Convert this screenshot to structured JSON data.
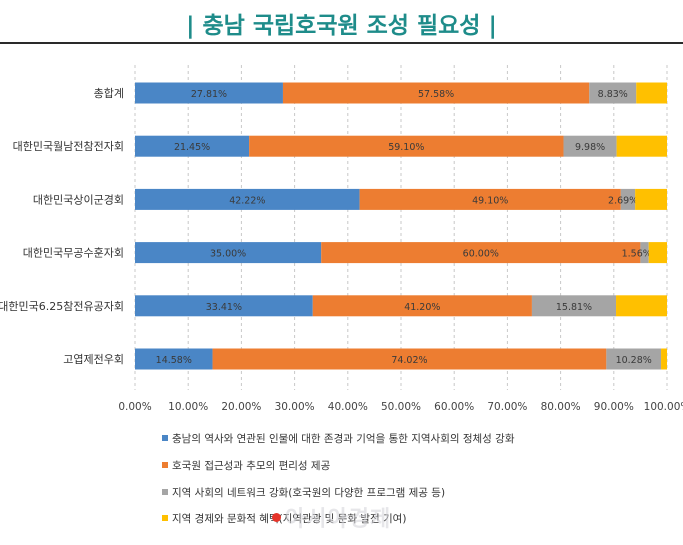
{
  "header": {
    "title": "| 충남 국립호국원 조성 필요성 |"
  },
  "chart_data": {
    "type": "bar",
    "orientation": "horizontal",
    "stacked": true,
    "categories": [
      "총합계",
      "대한민국월남전참전자회",
      "대한민국상이군경회",
      "대한민국무공수훈자회",
      "대한민국6.25참전유공자회",
      "고엽제전우회"
    ],
    "series": [
      {
        "name": "충남의 역사와 연관된 인물에 대한 존경과 기억을 통한 지역사회의 정체성 강화",
        "color": "#4a86c6",
        "values": [
          27.81,
          21.45,
          42.22,
          35.0,
          33.41,
          14.58
        ]
      },
      {
        "name": "호국원 접근성과 추모의 편리성 제공",
        "color": "#ed7d31",
        "values": [
          57.58,
          59.1,
          49.1,
          60.0,
          41.2,
          74.02
        ]
      },
      {
        "name": "지역 사회의 네트워크 강화(호국원의 다양한 프로그램 제공 등)",
        "color": "#a5a5a5",
        "values": [
          8.83,
          9.98,
          2.69,
          1.56,
          15.81,
          10.28
        ]
      },
      {
        "name": "지역 경제와 문화적 혜택(지역관광 및 문화 발전 기여)",
        "color": "#ffc000",
        "values": [
          5.78,
          9.47,
          5.99,
          3.44,
          9.58,
          1.12
        ]
      }
    ],
    "data_labels": [
      [
        "27.81%",
        "57.58%",
        "8.83%",
        ""
      ],
      [
        "21.45%",
        "59.10%",
        "9.98%",
        ""
      ],
      [
        "42.22%",
        "49.10%",
        "2.69%",
        ""
      ],
      [
        "35.00%",
        "60.00%",
        "1.56%",
        ""
      ],
      [
        "33.41%",
        "41.20%",
        "15.81%",
        ""
      ],
      [
        "14.58%",
        "74.02%",
        "10.28%",
        ""
      ]
    ],
    "x_ticks": [
      "0.00%",
      "10.00%",
      "20.00%",
      "30.00%",
      "40.00%",
      "50.00%",
      "60.00%",
      "70.00%",
      "80.00%",
      "90.00%",
      "100.00%"
    ],
    "xlim": [
      0,
      100
    ],
    "grid": "vertical dashed",
    "legend_position": "bottom"
  },
  "watermark": "아시아경제"
}
